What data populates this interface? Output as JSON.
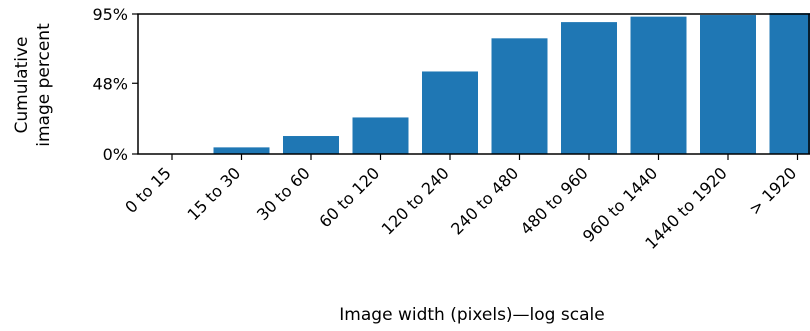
{
  "chart_data": {
    "type": "bar",
    "categories": [
      "0 to 15",
      "15 to 30",
      "30 to 60",
      "60 to 120",
      "120 to 240",
      "240 to 480",
      "480 to 960",
      "960 to 1440",
      "1440 to 1920",
      "> 1920"
    ],
    "values": [
      0.3,
      4.5,
      12.2,
      24.8,
      56,
      78.5,
      89.5,
      93.2,
      94.3,
      95.6
    ],
    "xlabel": "Image width (pixels)—log scale",
    "ylabel_lines": [
      "Cumulative",
      "image percent"
    ],
    "yticks": [
      0,
      48,
      95
    ],
    "ytick_labels": [
      "0%",
      "48%",
      "95%"
    ],
    "ylim": [
      0,
      95
    ],
    "bar_color": "#1f77b4",
    "grid": false
  }
}
